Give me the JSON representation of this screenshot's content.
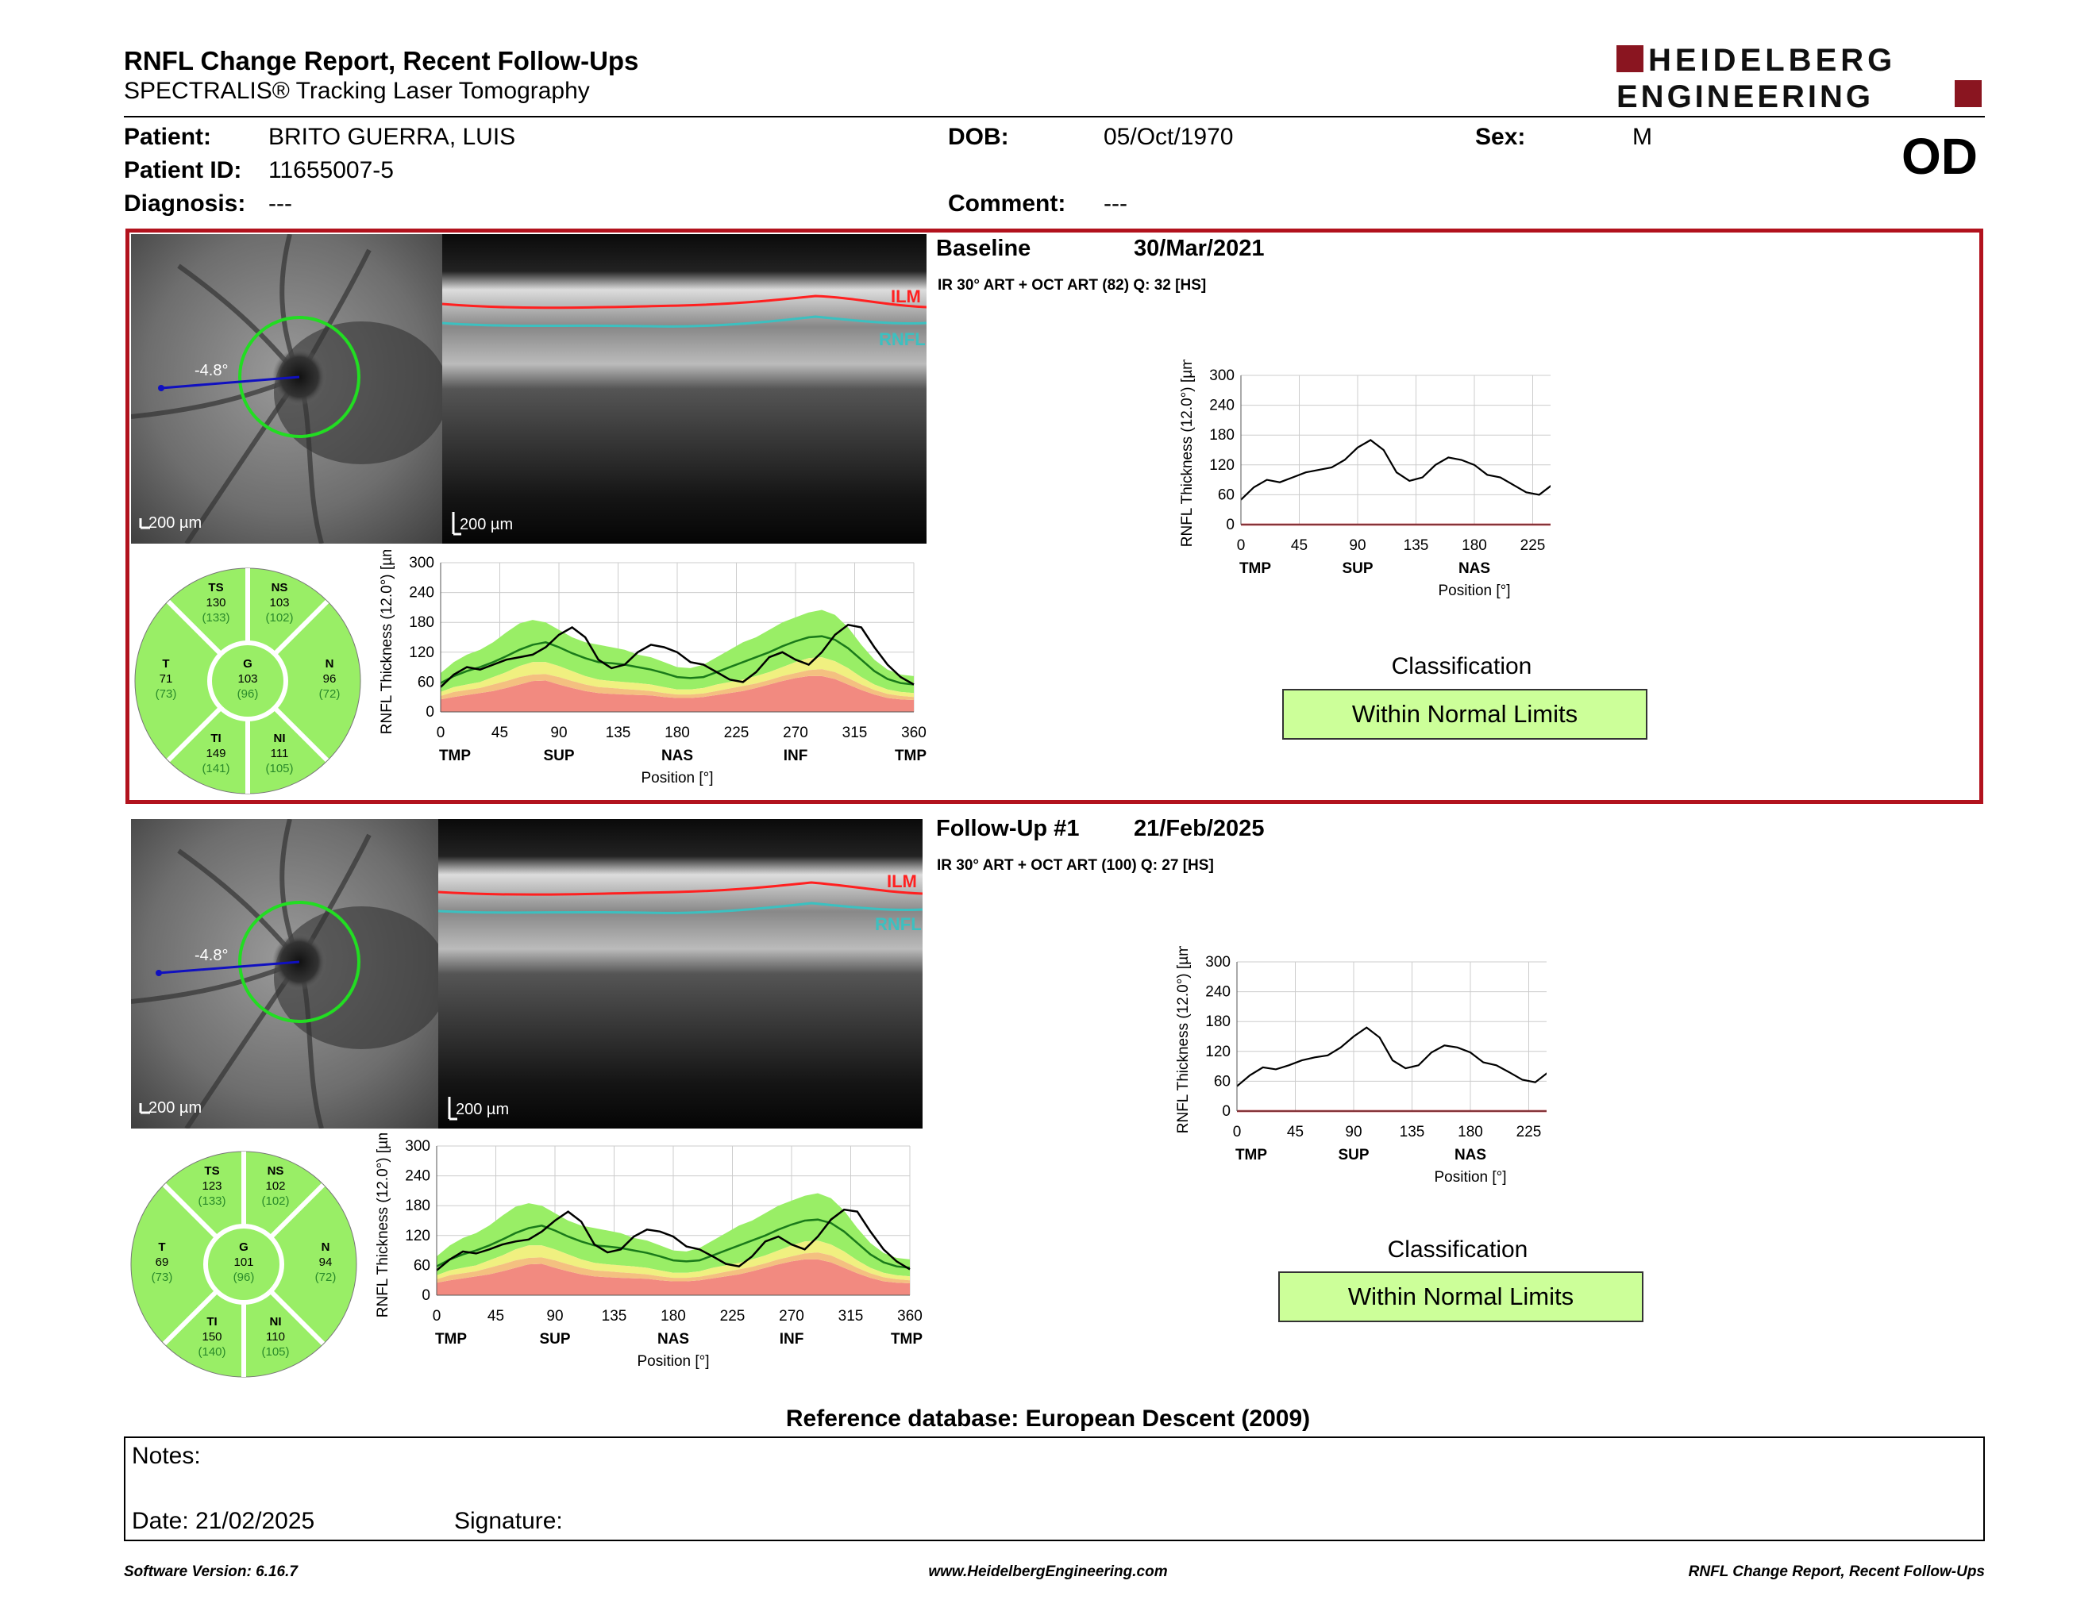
{
  "report": {
    "title": "RNFL Change Report, Recent Follow-Ups",
    "subtitle": "SPECTRALIS® Tracking Laser Tomography",
    "logo_line1": "HEIDELBERG",
    "logo_line2": "ENGINEERING",
    "eye": "OD"
  },
  "patient": {
    "patient_label": "Patient:",
    "patient_value": "BRITO GUERRA, LUIS",
    "id_label": "Patient ID:",
    "id_value": "11655007-5",
    "diagnosis_label": "Diagnosis:",
    "diagnosis_value": "---",
    "dob_label": "DOB:",
    "dob_value": "05/Oct/1970",
    "comment_label": "Comment:",
    "comment_value": "---",
    "sex_label": "Sex:",
    "sex_value": "M"
  },
  "colors": {
    "accent_red": "#b2121d",
    "normal_green": "#99ee66",
    "borderline_yellow": "#f0f080",
    "outside_red": "#f28a80",
    "wnl_box": "#ccff99",
    "ilm_red": "#ff2020",
    "rnfl_cyan": "#3cc0c0"
  },
  "scale_bar": "200 µm",
  "angle_label": "-4.8°",
  "oct_labels": {
    "ilm": "ILM",
    "rnfl": "RNFL"
  },
  "axis": {
    "ylabel": "RNFL Thickness (12.0°) [µm]",
    "xlabel": "Position [°]",
    "y_ticks": [
      "300",
      "240",
      "180",
      "120",
      "60",
      "0"
    ],
    "x_ticks": [
      "0",
      "45",
      "90",
      "135",
      "180",
      "225",
      "270",
      "315",
      "360"
    ],
    "regions": [
      "TMP",
      "SUP",
      "NAS",
      "INF",
      "TMP"
    ]
  },
  "scans": [
    {
      "heading": "Baseline",
      "date": "30/Mar/2021",
      "details": "IR 30° ART + OCT ART (82) Q: 32 [HS]",
      "classification_label": "Classification",
      "classification_value": "Within Normal Limits",
      "sectors": {
        "TS": {
          "name": "TS",
          "value": "130",
          "ref": "(133)"
        },
        "NS": {
          "name": "NS",
          "value": "103",
          "ref": "(102)"
        },
        "T": {
          "name": "T",
          "value": "71",
          "ref": "(73)"
        },
        "G": {
          "name": "G",
          "value": "103",
          "ref": "(96)"
        },
        "N": {
          "name": "N",
          "value": "96",
          "ref": "(72)"
        },
        "TI": {
          "name": "TI",
          "value": "149",
          "ref": "(141)"
        },
        "NI": {
          "name": "NI",
          "value": "111",
          "ref": "(105)"
        }
      }
    },
    {
      "heading": "Follow-Up #1",
      "date": "21/Feb/2025",
      "details": "IR 30° ART + OCT ART (100) Q: 27 [HS]",
      "classification_label": "Classification",
      "classification_value": "Within Normal Limits",
      "sectors": {
        "TS": {
          "name": "TS",
          "value": "123",
          "ref": "(133)"
        },
        "NS": {
          "name": "NS",
          "value": "102",
          "ref": "(102)"
        },
        "T": {
          "name": "T",
          "value": "69",
          "ref": "(73)"
        },
        "G": {
          "name": "G",
          "value": "101",
          "ref": "(96)"
        },
        "N": {
          "name": "N",
          "value": "94",
          "ref": "(72)"
        },
        "TI": {
          "name": "TI",
          "value": "150",
          "ref": "(140)"
        },
        "NI": {
          "name": "NI",
          "value": "110",
          "ref": "(105)"
        }
      }
    }
  ],
  "chart_data": [
    {
      "type": "line",
      "title": "",
      "xlabel": "Position [°]",
      "ylabel": "RNFL Thickness (12.0°) [µm]",
      "xlim": [
        0,
        360
      ],
      "ylim": [
        0,
        300
      ],
      "x": [
        0,
        10,
        20,
        30,
        40,
        50,
        60,
        70,
        80,
        90,
        100,
        110,
        120,
        130,
        140,
        150,
        160,
        170,
        180,
        190,
        200,
        210,
        220,
        230,
        240,
        250,
        260,
        270,
        280,
        290,
        300,
        310,
        320,
        330,
        340,
        350,
        360
      ],
      "series": [
        {
          "values": [
            50,
            75,
            90,
            85,
            95,
            105,
            110,
            115,
            130,
            155,
            170,
            150,
            105,
            88,
            95,
            120,
            135,
            130,
            120,
            100,
            95,
            80,
            65,
            60,
            80,
            110,
            120,
            105,
            95,
            120,
            155,
            175,
            170,
            130,
            95,
            70,
            55
          ]
        }
      ],
      "normal_band": {
        "upper": [
          78,
          100,
          115,
          125,
          140,
          160,
          178,
          185,
          180,
          165,
          150,
          140,
          135,
          130,
          125,
          115,
          110,
          100,
          90,
          88,
          95,
          110,
          125,
          140,
          150,
          165,
          180,
          190,
          200,
          205,
          195,
          170,
          135,
          105,
          85,
          75,
          72
        ],
        "lower": [
          40,
          50,
          55,
          60,
          70,
          80,
          92,
          100,
          100,
          92,
          82,
          72,
          65,
          62,
          60,
          58,
          55,
          50,
          45,
          45,
          48,
          55,
          60,
          65,
          72,
          80,
          90,
          100,
          108,
          110,
          102,
          88,
          70,
          55,
          45,
          40,
          38
        ]
      },
      "mean": [
        58,
        72,
        82,
        90,
        100,
        112,
        125,
        135,
        140,
        130,
        118,
        108,
        100,
        98,
        95,
        90,
        85,
        78,
        70,
        68,
        70,
        80,
        90,
        100,
        110,
        120,
        132,
        142,
        150,
        152,
        145,
        128,
        105,
        82,
        66,
        58,
        55
      ],
      "borderline_lower": [
        32,
        40,
        44,
        48,
        55,
        62,
        70,
        75,
        76,
        70,
        62,
        55,
        50,
        48,
        46,
        44,
        42,
        38,
        35,
        35,
        37,
        42,
        47,
        52,
        57,
        64,
        72,
        78,
        84,
        86,
        80,
        68,
        55,
        44,
        36,
        32,
        30
      ],
      "outside_lower": [
        25,
        30,
        34,
        38,
        42,
        48,
        55,
        62,
        63,
        55,
        48,
        42,
        38,
        36,
        35,
        34,
        33,
        30,
        28,
        28,
        30,
        34,
        38,
        42,
        48,
        55,
        62,
        68,
        72,
        72,
        66,
        55,
        44,
        35,
        28,
        25,
        24
      ]
    },
    {
      "type": "line",
      "title": "",
      "xlabel": "Position [°]",
      "ylabel": "RNFL Thickness (12.0°) [µm]",
      "xlim": [
        0,
        360
      ],
      "ylim": [
        0,
        300
      ],
      "x": [
        0,
        10,
        20,
        30,
        40,
        50,
        60,
        70,
        80,
        90,
        100,
        110,
        120,
        130,
        140,
        150,
        160,
        170,
        180,
        190,
        200,
        210,
        220,
        230,
        240,
        250,
        260,
        270,
        280,
        290,
        300,
        310,
        320,
        330,
        340,
        350,
        360
      ],
      "series": [
        {
          "values": [
            50,
            72,
            88,
            84,
            92,
            102,
            108,
            112,
            128,
            150,
            168,
            148,
            102,
            86,
            92,
            118,
            132,
            128,
            118,
            98,
            92,
            78,
            63,
            58,
            78,
            108,
            118,
            102,
            92,
            118,
            152,
            172,
            168,
            128,
            92,
            68,
            52
          ]
        }
      ],
      "normal_band": {
        "upper": [
          78,
          100,
          115,
          125,
          140,
          160,
          178,
          185,
          180,
          165,
          150,
          140,
          135,
          130,
          125,
          115,
          110,
          100,
          90,
          88,
          95,
          110,
          125,
          140,
          150,
          165,
          180,
          190,
          200,
          205,
          195,
          170,
          135,
          105,
          85,
          75,
          72
        ],
        "lower": [
          40,
          50,
          55,
          60,
          70,
          80,
          92,
          100,
          100,
          92,
          82,
          72,
          65,
          62,
          60,
          58,
          55,
          50,
          45,
          45,
          48,
          55,
          60,
          65,
          72,
          80,
          90,
          100,
          108,
          110,
          102,
          88,
          70,
          55,
          45,
          40,
          38
        ]
      },
      "mean": [
        58,
        72,
        82,
        90,
        100,
        112,
        125,
        135,
        140,
        130,
        118,
        108,
        100,
        98,
        95,
        90,
        85,
        78,
        70,
        68,
        70,
        80,
        90,
        100,
        110,
        120,
        132,
        142,
        150,
        152,
        145,
        128,
        105,
        82,
        66,
        58,
        55
      ],
      "borderline_lower": [
        32,
        40,
        44,
        48,
        55,
        62,
        70,
        75,
        76,
        70,
        62,
        55,
        50,
        48,
        46,
        44,
        42,
        38,
        35,
        35,
        37,
        42,
        47,
        52,
        57,
        64,
        72,
        78,
        84,
        86,
        80,
        68,
        55,
        44,
        36,
        32,
        30
      ],
      "outside_lower": [
        25,
        30,
        34,
        38,
        42,
        48,
        55,
        62,
        63,
        55,
        48,
        42,
        38,
        36,
        35,
        34,
        33,
        30,
        28,
        28,
        30,
        34,
        38,
        42,
        48,
        55,
        62,
        68,
        72,
        72,
        66,
        55,
        44,
        35,
        28,
        25,
        24
      ]
    }
  ],
  "reference_db": "Reference database: European Descent (2009)",
  "notes": {
    "notes_label": "Notes:",
    "date_label": "Date: 21/02/2025",
    "signature_label": "Signature:"
  },
  "footer": {
    "left": "Software Version: 6.16.7",
    "center": "www.HeidelbergEngineering.com",
    "right": "RNFL Change Report, Recent Follow-Ups"
  }
}
